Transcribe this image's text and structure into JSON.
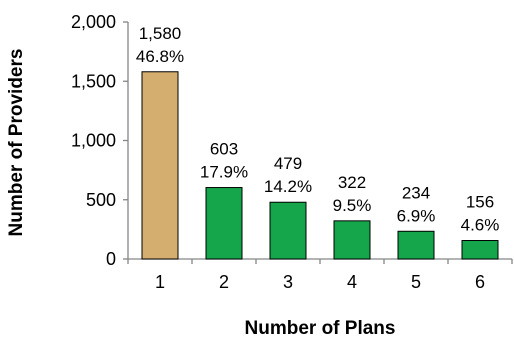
{
  "chart_data": {
    "type": "bar",
    "xlabel": "Number of Plans",
    "ylabel": "Number of Providers",
    "categories": [
      "1",
      "2",
      "3",
      "4",
      "5",
      "6"
    ],
    "values": [
      1580,
      603,
      479,
      322,
      234,
      156
    ],
    "value_labels": [
      "1,580",
      "603",
      "479",
      "322",
      "234",
      "156"
    ],
    "percent_labels": [
      "46.8%",
      "17.9%",
      "14.2%",
      "9.5%",
      "6.9%",
      "4.6%"
    ],
    "bar_colors": [
      "#D4AE6E",
      "#15A64C",
      "#15A64C",
      "#15A64C",
      "#15A64C",
      "#15A64C"
    ],
    "ylim": [
      0,
      2000
    ],
    "yticks": [
      0,
      500,
      1000,
      1500,
      2000
    ],
    "ytick_labels": [
      "0",
      "500",
      "1,000",
      "1,500",
      "2,000"
    ],
    "grid": false,
    "legend": "none"
  }
}
